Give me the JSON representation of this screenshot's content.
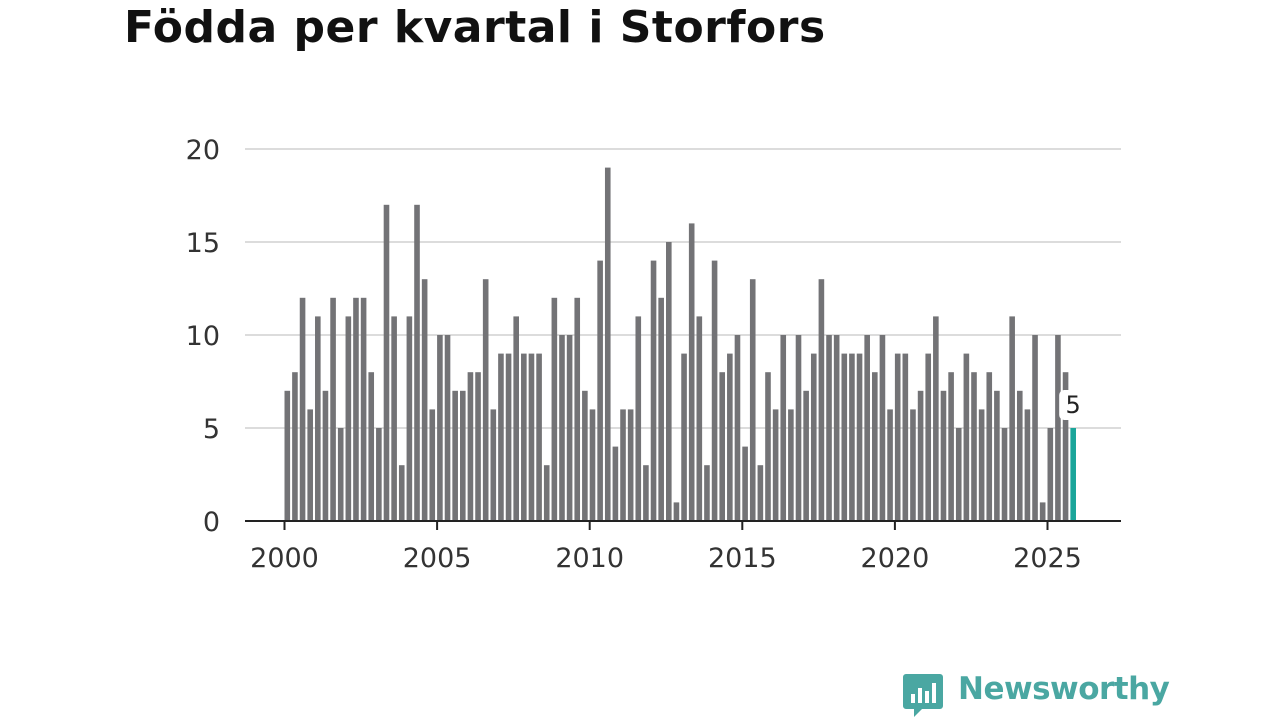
{
  "chart_data": {
    "type": "bar",
    "title": "Födda per kvartal i Storfors",
    "xlabel": "",
    "ylabel": "",
    "ylim": [
      0,
      20
    ],
    "yticks": [
      "0",
      "5",
      "10",
      "15",
      "20"
    ],
    "xticks": [
      "2000",
      "2005",
      "2010",
      "2015",
      "2020",
      "2025"
    ],
    "x_start_year": 2000,
    "x_end_year": 2026,
    "grid": true,
    "legend": "none",
    "bar_color": "#737376",
    "highlight_color": "#1aa59a",
    "highlight_label": "5",
    "series": [
      {
        "name": "Födda",
        "values": [
          7,
          8,
          12,
          6,
          11,
          7,
          12,
          5,
          11,
          12,
          12,
          8,
          5,
          17,
          11,
          3,
          11,
          17,
          13,
          6,
          10,
          10,
          7,
          7,
          8,
          8,
          13,
          6,
          9,
          9,
          11,
          9,
          9,
          9,
          3,
          12,
          10,
          10,
          12,
          7,
          6,
          14,
          19,
          4,
          6,
          6,
          11,
          3,
          14,
          12,
          15,
          1,
          9,
          16,
          11,
          3,
          14,
          8,
          9,
          10,
          4,
          13,
          3,
          8,
          6,
          10,
          6,
          10,
          7,
          9,
          13,
          10,
          10,
          9,
          9,
          9,
          10,
          8,
          10,
          6,
          9,
          9,
          6,
          7,
          9,
          11,
          7,
          8,
          5,
          9,
          8,
          6,
          8,
          7,
          5,
          11,
          7,
          6,
          10,
          1,
          5,
          10,
          8,
          5
        ]
      }
    ]
  },
  "brand": {
    "name": "Newsworthy",
    "color": "#4aa7a2"
  }
}
